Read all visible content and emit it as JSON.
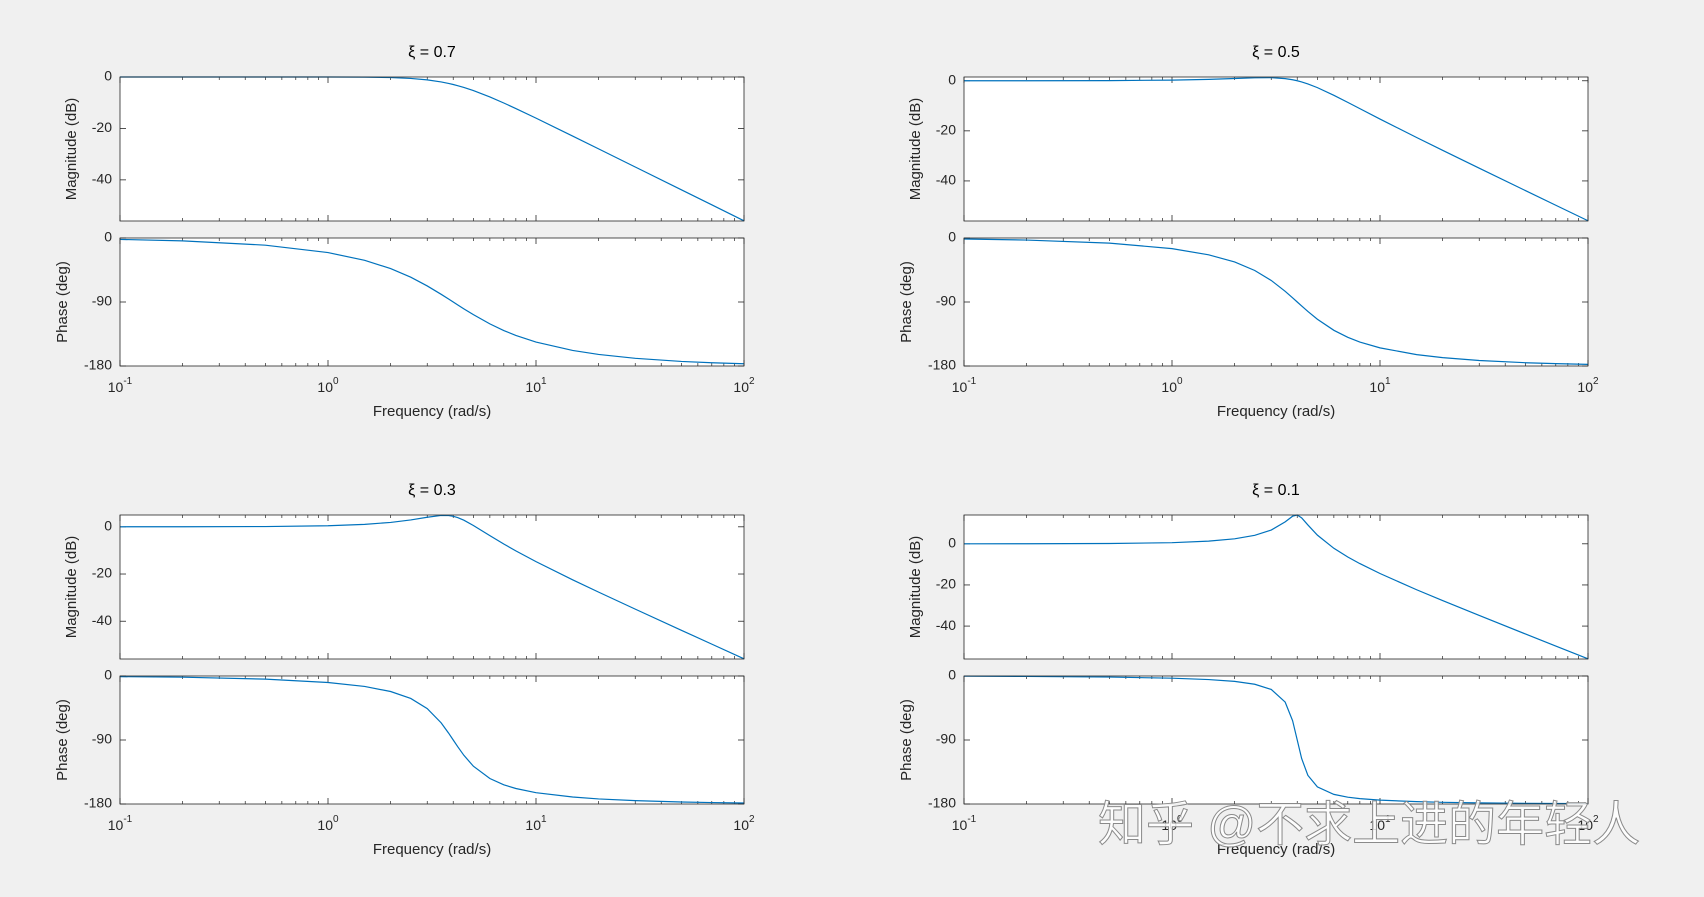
{
  "chart_data": [
    {
      "type": "bode",
      "title": "ξ = 0.7",
      "xlabel": "Frequency  (rad/s)",
      "xscale": "log",
      "color": "#0072bd",
      "x": [
        0.1,
        0.2,
        0.5,
        1,
        1.5,
        2,
        2.5,
        3,
        3.5,
        3.8,
        4,
        4.2,
        4.5,
        5,
        6,
        7,
        8,
        10,
        15,
        20,
        30,
        50,
        70,
        100
      ],
      "xlim": [
        0.1,
        100
      ],
      "xticks": [
        {
          "value": 0.1,
          "label": "10",
          "exponent": "-1"
        },
        {
          "value": 1,
          "label": "10",
          "exponent": "0"
        },
        {
          "value": 10,
          "label": "10",
          "exponent": "1"
        },
        {
          "value": 100,
          "label": "10",
          "exponent": "2"
        }
      ],
      "magnitude": {
        "ylabel": "Magnitude (dB)",
        "ylim": [
          -56,
          0
        ],
        "yticks": [
          -40,
          -20,
          0
        ],
        "values": [
          0.0,
          0.0,
          0.0,
          -0.006,
          -0.061,
          -0.222,
          -0.557,
          -1.119,
          -1.919,
          -2.5,
          -2.923,
          -3.367,
          -4.068,
          -5.288,
          -7.762,
          -10.11,
          -12.264,
          -16.0,
          -22.971,
          -27.959,
          -35.0,
          -43.875,
          -49.721,
          -55.917
        ]
      },
      "phase": {
        "ylabel": "Phase (deg)",
        "ylim": [
          -180,
          0
        ],
        "yticks": [
          -180,
          -90,
          0
        ],
        "values": [
          -2.0,
          -4.0,
          -10.1,
          -20.5,
          -31.4,
          -43.0,
          -55.1,
          -67.4,
          -79.2,
          -85.8,
          -90,
          -94.0,
          -99.6,
          -107.8,
          -120.8,
          -130.1,
          -137.0,
          -146.3,
          -158.1,
          -163.7,
          -169.2,
          -173.6,
          -175.4,
          -176.8
        ]
      }
    },
    {
      "type": "bode",
      "title": "ξ = 0.5",
      "xlabel": "Frequency  (rad/s)",
      "xscale": "log",
      "color": "#0072bd",
      "x": [
        0.1,
        0.2,
        0.5,
        1,
        1.5,
        2,
        2.5,
        3,
        3.5,
        3.8,
        4,
        4.2,
        4.5,
        5,
        6,
        7,
        8,
        10,
        15,
        20,
        30,
        50,
        70,
        100
      ],
      "xlim": [
        0.1,
        100
      ],
      "xticks": [
        {
          "value": 0.1,
          "label": "10",
          "exponent": "-1"
        },
        {
          "value": 1,
          "label": "10",
          "exponent": "0"
        },
        {
          "value": 10,
          "label": "10",
          "exponent": "1"
        },
        {
          "value": 100,
          "label": "10",
          "exponent": "2"
        }
      ],
      "magnitude": {
        "ylabel": "Magnitude (dB)",
        "ylim": [
          -56,
          1.5
        ],
        "yticks": [
          -40,
          -20,
          0
        ],
        "values": [
          0.003,
          0.011,
          0.067,
          0.262,
          0.559,
          0.902,
          1.181,
          1.227,
          0.859,
          0.4,
          0.0,
          -0.465,
          -1.259,
          -2.739,
          -5.812,
          -8.643,
          -11.139,
          -15.291,
          -22.664,
          -27.789,
          -34.926,
          -43.849,
          -49.707,
          -55.91
        ]
      },
      "phase": {
        "ylabel": "Phase (deg)",
        "ylim": [
          -180,
          0
        ],
        "yticks": [
          -180,
          -90,
          0
        ],
        "values": [
          -1.4,
          -2.9,
          -7.2,
          -14.9,
          -23.6,
          -33.7,
          -45.7,
          -59.7,
          -75.0,
          -84.1,
          -90,
          -95.6,
          -103.3,
          -114.2,
          -129.8,
          -139.7,
          -146.3,
          -154.5,
          -164.0,
          -168.2,
          -172.3,
          -175.4,
          -176.7,
          -177.7
        ]
      }
    },
    {
      "type": "bode",
      "title": "ξ = 0.3",
      "xlabel": "Frequency  (rad/s)",
      "xscale": "log",
      "color": "#0072bd",
      "x": [
        0.1,
        0.2,
        0.5,
        1,
        1.5,
        2,
        2.5,
        3,
        3.5,
        3.8,
        4,
        4.2,
        4.5,
        5,
        6,
        7,
        8,
        10,
        15,
        20,
        30,
        50,
        70,
        100
      ],
      "xlim": [
        0.1,
        100
      ],
      "xticks": [
        {
          "value": 0.1,
          "label": "10",
          "exponent": "-1"
        },
        {
          "value": 1,
          "label": "10",
          "exponent": "0"
        },
        {
          "value": 10,
          "label": "10",
          "exponent": "1"
        },
        {
          "value": 100,
          "label": "10",
          "exponent": "2"
        }
      ],
      "magnitude": {
        "ylabel": "Magnitude (dB)",
        "ylim": [
          -56,
          5
        ],
        "yticks": [
          -40,
          -20,
          0
        ],
        "values": [
          0.004,
          0.018,
          0.112,
          0.451,
          1.028,
          1.854,
          2.908,
          4.046,
          4.808,
          4.757,
          4.437,
          3.9,
          2.789,
          0.561,
          -3.752,
          -7.289,
          -10.187,
          -14.744,
          -22.447,
          -27.672,
          -34.875,
          -43.831,
          -49.698,
          -55.906
        ]
      },
      "phase": {
        "ylabel": "Phase (deg)",
        "ylim": [
          -180,
          0
        ],
        "yticks": [
          -180,
          -90,
          0
        ],
        "values": [
          -0.9,
          -1.7,
          -4.4,
          -9.1,
          -14.7,
          -21.8,
          -31.6,
          -45.8,
          -65.9,
          -80.3,
          -90,
          -99.2,
          -111.5,
          -126.9,
          -144.2,
          -153.0,
          -158.2,
          -164.1,
          -170.2,
          -172.9,
          -175.3,
          -177.2,
          -178.0,
          -178.6
        ]
      }
    },
    {
      "type": "bode",
      "title": "ξ = 0.1",
      "xlabel": "Frequency  (rad/s)",
      "xscale": "log",
      "color": "#0072bd",
      "x": [
        0.1,
        0.2,
        0.5,
        1,
        1.5,
        2,
        2.5,
        3,
        3.5,
        3.8,
        4,
        4.2,
        4.5,
        5,
        6,
        7,
        8,
        10,
        15,
        20,
        30,
        50,
        70,
        100
      ],
      "xlim": [
        0.1,
        100
      ],
      "xticks": [
        {
          "value": 0.1,
          "label": "10",
          "exponent": "-1"
        },
        {
          "value": 1,
          "label": "10",
          "exponent": "0"
        },
        {
          "value": 10,
          "label": "10",
          "exponent": "1"
        },
        {
          "value": 100,
          "label": "10",
          "exponent": "2"
        }
      ],
      "magnitude": {
        "ylabel": "Magnitude (dB)",
        "ylim": [
          -56,
          14
        ],
        "yticks": [
          -40,
          -20,
          0
        ],
        "values": [
          0.005,
          0.021,
          0.134,
          0.548,
          1.283,
          2.422,
          4.123,
          6.698,
          10.677,
          13.41,
          13.979,
          12.628,
          9.166,
          4.215,
          -2.181,
          -6.411,
          -9.619,
          -14.443,
          -22.335,
          -27.612,
          -34.85,
          -43.822,
          -49.694,
          -55.904
        ]
      },
      "phase": {
        "ylabel": "Phase (deg)",
        "ylim": [
          -180,
          0
        ],
        "yticks": [
          -180,
          -90,
          0
        ],
        "values": [
          -0.3,
          -0.6,
          -1.5,
          -3.1,
          -5.0,
          -7.6,
          -11.6,
          -18.9,
          -36.7,
          -62.8,
          -90,
          -116.0,
          -139.7,
          -156.0,
          -166.5,
          -170.4,
          -172.4,
          -174.6,
          -176.7,
          -177.6,
          -178.4,
          -179.1,
          -179.3,
          -179.5
        ]
      }
    }
  ],
  "watermark": "知乎 @不求上进的年轻人"
}
